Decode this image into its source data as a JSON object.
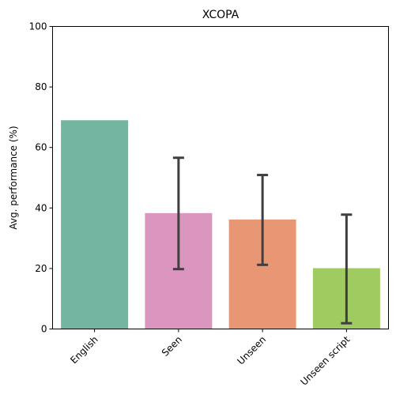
{
  "chart_data": {
    "type": "bar",
    "title": "XCOPA",
    "xlabel": "",
    "ylabel": "Avg. performance (%)",
    "ylim": [
      0,
      100
    ],
    "yticks": [
      0,
      20,
      40,
      60,
      80,
      100
    ],
    "categories": [
      "English",
      "Seen",
      "Unseen",
      "Unseen script"
    ],
    "values": [
      69,
      38.3,
      36.2,
      20.1
    ],
    "error_low": [
      null,
      19.8,
      21.2,
      1.9
    ],
    "error_high": [
      null,
      56.6,
      50.9,
      37.8
    ],
    "colors": [
      "#72b6a1",
      "#db96c0",
      "#e99675",
      "#a0cb61"
    ],
    "grid": false,
    "xtick_rotation": -45
  }
}
